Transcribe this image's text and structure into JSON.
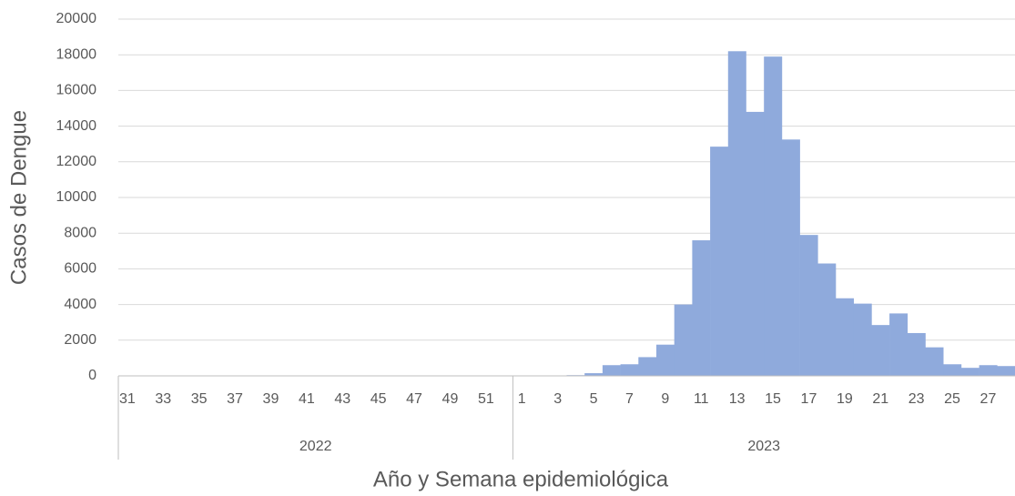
{
  "chart_data": {
    "type": "bar",
    "x_label": "Año y Semana epidemiológica",
    "y_label": "Casos de Dengue",
    "color": "#8faadc",
    "grid": true,
    "ylim": [
      0,
      20000
    ],
    "yticks": [
      0,
      2000,
      4000,
      6000,
      8000,
      10000,
      12000,
      14000,
      16000,
      18000,
      20000
    ],
    "groups": [
      {
        "label": "2022",
        "categories": [
          "31",
          null,
          "33",
          null,
          "35",
          null,
          "37",
          null,
          "39",
          null,
          "41",
          null,
          "43",
          null,
          "45",
          null,
          "47",
          null,
          "49",
          null,
          "51",
          null
        ],
        "values": [
          0,
          0,
          0,
          0,
          0,
          0,
          0,
          0,
          0,
          0,
          0,
          0,
          0,
          0,
          0,
          0,
          0,
          0,
          0,
          0,
          0,
          0
        ]
      },
      {
        "label": "2023",
        "categories": [
          "1",
          null,
          "3",
          null,
          "5",
          null,
          "7",
          null,
          "9",
          null,
          "11",
          null,
          "13",
          null,
          "15",
          null,
          "17",
          null,
          "19",
          null,
          "21",
          null,
          "23",
          null,
          "25",
          null,
          "27",
          null
        ],
        "values": [
          10,
          15,
          20,
          40,
          150,
          600,
          650,
          1050,
          1750,
          4000,
          7600,
          12850,
          18200,
          14800,
          17900,
          13250,
          7900,
          6300,
          4350,
          4050,
          2850,
          3500,
          2400,
          1600,
          650,
          450,
          600,
          550
        ]
      }
    ]
  }
}
